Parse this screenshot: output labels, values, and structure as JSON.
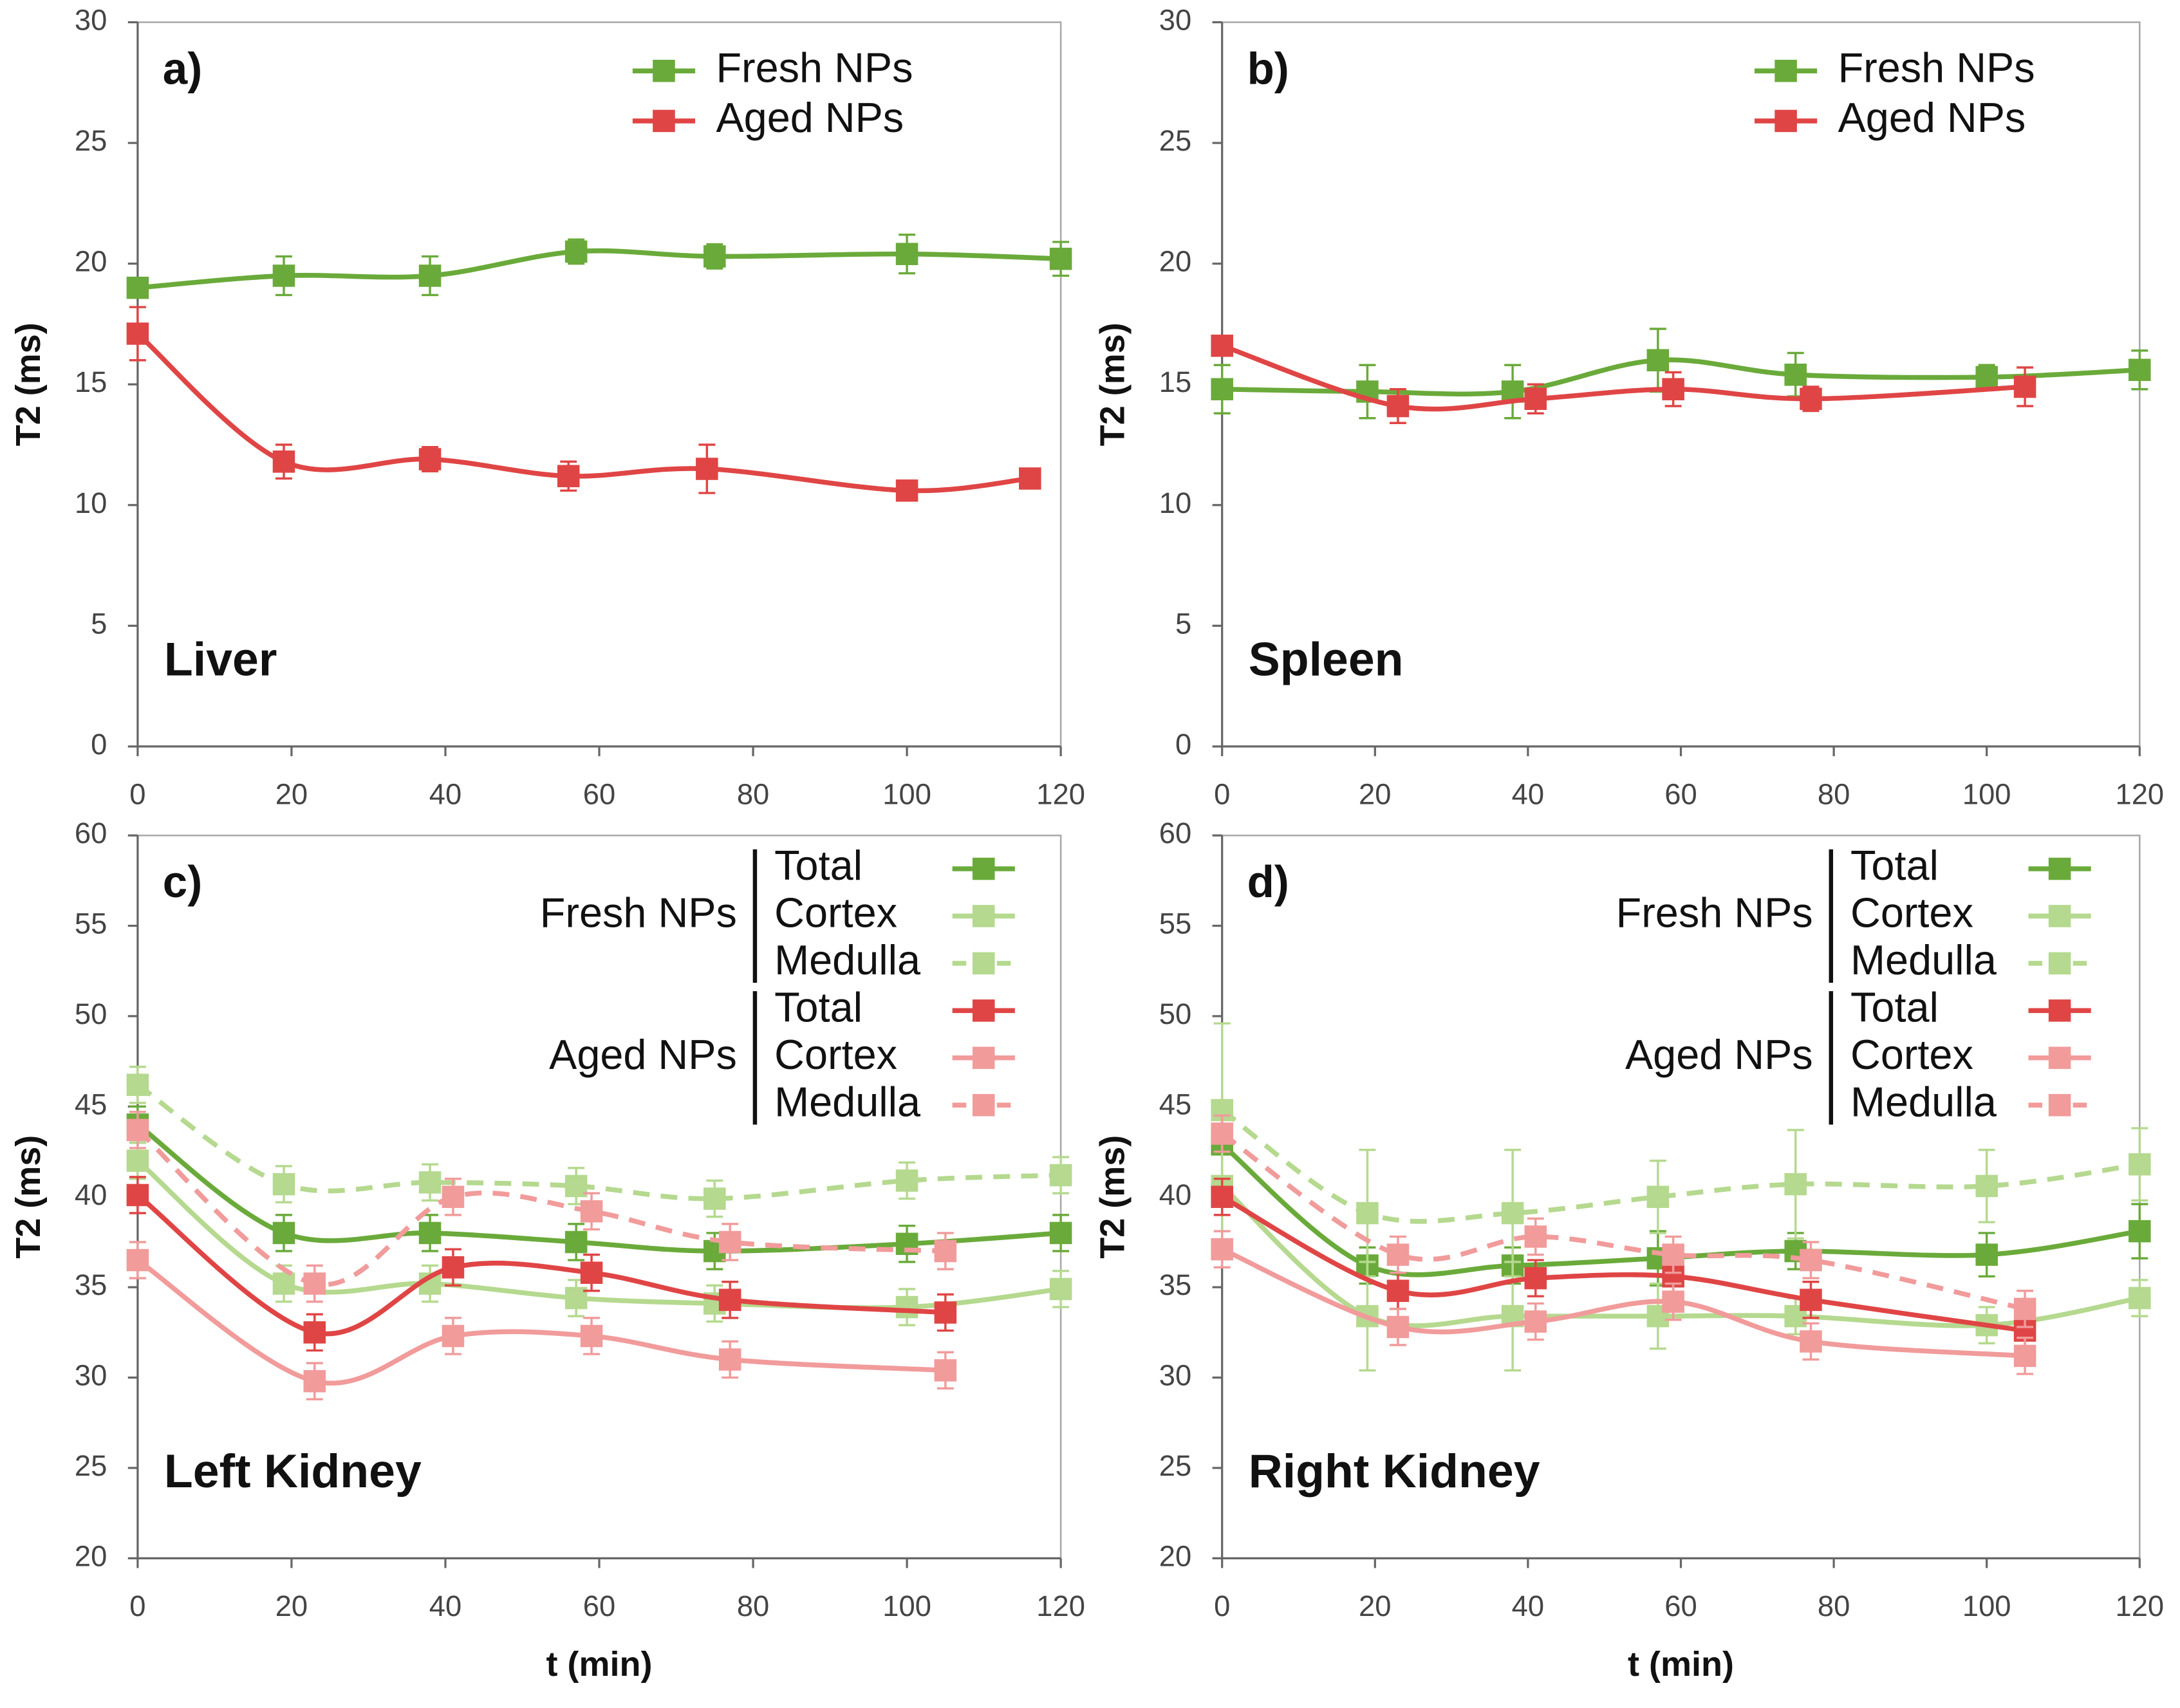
{
  "chart_data": [
    {
      "type": "line",
      "label": "a)",
      "title": "Liver",
      "ylabel": "T2 (ms)",
      "xlim": [
        0,
        120
      ],
      "xticks": [
        0,
        20,
        40,
        60,
        80,
        100,
        120
      ],
      "ylim": [
        0,
        30
      ],
      "yticks": [
        0,
        5,
        10,
        15,
        20,
        25,
        30
      ],
      "smooth": true,
      "series": [
        {
          "name": "Fresh NPs",
          "color": "#6aaa3a",
          "dash": false,
          "x": [
            0,
            19,
            38,
            57,
            75,
            100,
            120
          ],
          "values": [
            19.0,
            19.5,
            19.5,
            20.5,
            20.3,
            20.4,
            20.2
          ],
          "errors": [
            0.4,
            0.8,
            0.8,
            0.5,
            0.5,
            0.8,
            0.7
          ]
        },
        {
          "name": "Aged NPs",
          "color": "#e04545",
          "dash": false,
          "x": [
            0,
            19,
            38,
            56,
            74,
            100,
            116
          ],
          "values": [
            17.1,
            11.8,
            11.9,
            11.2,
            11.5,
            10.6,
            11.1
          ],
          "errors": [
            1.1,
            0.7,
            0.5,
            0.6,
            1.0,
            0.3,
            0.4
          ]
        }
      ]
    },
    {
      "type": "line",
      "label": "b)",
      "title": "Spleen",
      "ylabel": "T2 (ms)",
      "xlim": [
        0,
        120
      ],
      "xticks": [
        0,
        20,
        40,
        60,
        80,
        100,
        120
      ],
      "ylim": [
        0,
        30
      ],
      "yticks": [
        0,
        5,
        10,
        15,
        20,
        25,
        30
      ],
      "smooth": true,
      "series": [
        {
          "name": "Fresh NPs",
          "color": "#6aaa3a",
          "dash": false,
          "x": [
            0,
            19,
            38,
            57,
            75,
            100,
            120
          ],
          "values": [
            14.8,
            14.7,
            14.7,
            16.0,
            15.4,
            15.3,
            15.6
          ],
          "errors": [
            1.0,
            1.1,
            1.1,
            1.3,
            0.9,
            0.5,
            0.8
          ]
        },
        {
          "name": "Aged NPs",
          "color": "#e04545",
          "dash": false,
          "x": [
            0,
            23,
            41,
            59,
            77,
            105
          ],
          "values": [
            16.6,
            14.1,
            14.4,
            14.8,
            14.4,
            14.9
          ],
          "errors": [
            0.3,
            0.7,
            0.6,
            0.7,
            0.5,
            0.8
          ]
        }
      ]
    },
    {
      "type": "line",
      "label": "c)",
      "title": "Left Kidney",
      "ylabel": "T2 (ms)",
      "xlabel": "t (min)",
      "xlim": [
        0,
        120
      ],
      "xticks": [
        0,
        20,
        40,
        60,
        80,
        100,
        120
      ],
      "ylim": [
        20,
        60
      ],
      "yticks": [
        20,
        25,
        30,
        35,
        40,
        45,
        50,
        55,
        60
      ],
      "smooth": true,
      "groups": [
        {
          "name": "Fresh NPs",
          "series": [
            {
              "name": "Total",
              "color": "#6aaa3a",
              "dash": false,
              "x": [
                0,
                19,
                38,
                57,
                75,
                100,
                120
              ],
              "values": [
                44.0,
                38.0,
                38.0,
                37.5,
                37.0,
                37.4,
                38.0
              ],
              "errors": [
                1.0,
                1.0,
                1.0,
                1.0,
                1.0,
                1.0,
                1.0
              ]
            },
            {
              "name": "Cortex",
              "color": "#b5d98f",
              "dash": false,
              "x": [
                0,
                19,
                38,
                57,
                75,
                100,
                120
              ],
              "values": [
                42.0,
                35.2,
                35.2,
                34.4,
                34.1,
                33.9,
                34.9
              ],
              "errors": [
                1.0,
                1.0,
                1.0,
                1.0,
                1.0,
                1.0,
                1.0
              ]
            },
            {
              "name": "Medulla",
              "color": "#b5d98f",
              "dash": true,
              "x": [
                0,
                19,
                38,
                57,
                75,
                100,
                120
              ],
              "values": [
                46.2,
                40.7,
                40.8,
                40.6,
                39.9,
                40.9,
                41.2
              ],
              "errors": [
                1.0,
                1.0,
                1.0,
                1.0,
                1.0,
                1.0,
                1.0
              ]
            }
          ]
        },
        {
          "name": "Aged NPs",
          "series": [
            {
              "name": "Total",
              "color": "#e04545",
              "dash": false,
              "x": [
                0,
                23,
                41,
                59,
                77,
                105
              ],
              "values": [
                40.1,
                32.5,
                36.1,
                35.8,
                34.3,
                33.6
              ],
              "errors": [
                1.0,
                1.0,
                1.0,
                1.0,
                1.0,
                1.0
              ]
            },
            {
              "name": "Cortex",
              "color": "#f19b9b",
              "dash": false,
              "x": [
                0,
                23,
                41,
                59,
                77,
                105
              ],
              "values": [
                36.5,
                29.8,
                32.3,
                32.3,
                31.0,
                30.4
              ],
              "errors": [
                1.0,
                1.0,
                1.0,
                1.0,
                1.0,
                1.0
              ]
            },
            {
              "name": "Medulla",
              "color": "#f19b9b",
              "dash": true,
              "x": [
                0,
                23,
                41,
                59,
                77,
                105
              ],
              "values": [
                43.7,
                35.2,
                40.0,
                39.2,
                37.5,
                37.0
              ],
              "errors": [
                1.0,
                1.0,
                1.0,
                1.0,
                1.0,
                1.0
              ]
            }
          ]
        }
      ]
    },
    {
      "type": "line",
      "label": "d)",
      "title": "Right Kidney",
      "ylabel": "T2 (ms)",
      "xlabel": "t (min)",
      "xlim": [
        0,
        120
      ],
      "xticks": [
        0,
        20,
        40,
        60,
        80,
        100,
        120
      ],
      "ylim": [
        20,
        60
      ],
      "yticks": [
        20,
        25,
        30,
        35,
        40,
        45,
        50,
        55,
        60
      ],
      "smooth": true,
      "groups": [
        {
          "name": "Fresh NPs",
          "series": [
            {
              "name": "Total",
              "color": "#6aaa3a",
              "dash": false,
              "x": [
                0,
                19,
                38,
                57,
                75,
                100,
                120
              ],
              "values": [
                42.9,
                36.2,
                36.2,
                36.6,
                37.0,
                36.8,
                38.1
              ],
              "errors": [
                2.0,
                1.0,
                1.0,
                1.5,
                1.0,
                1.2,
                1.5
              ]
            },
            {
              "name": "Cortex",
              "color": "#b5d98f",
              "dash": false,
              "x": [
                0,
                19,
                38,
                57,
                75,
                100,
                120
              ],
              "values": [
                40.6,
                33.4,
                33.4,
                33.4,
                33.4,
                32.9,
                34.4
              ],
              "errors": [
                3.0,
                3.0,
                3.0,
                1.8,
                1.0,
                1.0,
                1.0
              ]
            },
            {
              "name": "Medulla",
              "color": "#b5d98f",
              "dash": true,
              "x": [
                0,
                19,
                38,
                57,
                75,
                100,
                120
              ],
              "values": [
                44.8,
                39.1,
                39.1,
                40.0,
                40.7,
                40.6,
                41.8
              ],
              "errors": [
                4.8,
                3.5,
                3.5,
                2.0,
                3.0,
                2.0,
                2.0
              ]
            }
          ]
        },
        {
          "name": "Aged NPs",
          "series": [
            {
              "name": "Total",
              "color": "#e04545",
              "dash": false,
              "x": [
                0,
                23,
                41,
                59,
                77,
                105
              ],
              "values": [
                40.0,
                34.8,
                35.5,
                35.6,
                34.3,
                32.6
              ],
              "errors": [
                1.0,
                1.0,
                1.0,
                1.0,
                1.0,
                1.0
              ]
            },
            {
              "name": "Cortex",
              "color": "#f19b9b",
              "dash": false,
              "x": [
                0,
                23,
                41,
                59,
                77,
                105
              ],
              "values": [
                37.1,
                32.8,
                33.1,
                34.2,
                32.0,
                31.2
              ],
              "errors": [
                1.0,
                1.0,
                1.0,
                1.0,
                1.0,
                1.0
              ]
            },
            {
              "name": "Medulla",
              "color": "#f19b9b",
              "dash": true,
              "x": [
                0,
                23,
                41,
                59,
                77,
                105
              ],
              "values": [
                43.5,
                36.8,
                37.8,
                36.8,
                36.5,
                33.8
              ],
              "errors": [
                1.0,
                1.0,
                1.0,
                1.0,
                1.0,
                1.0
              ]
            }
          ]
        }
      ]
    }
  ]
}
